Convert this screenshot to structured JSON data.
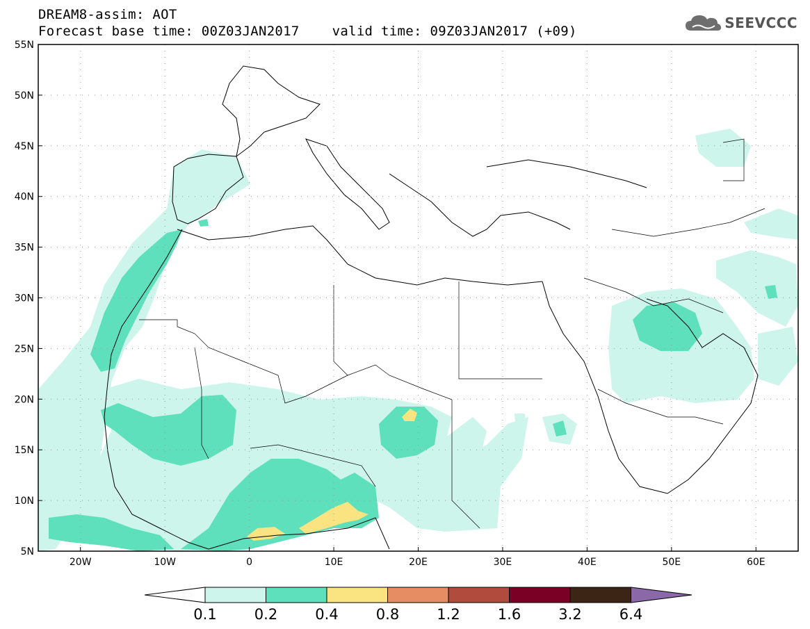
{
  "header": {
    "line1": "DREAM8-assim: AOT",
    "line2": "Forecast base time: 00Z03JAN2017    valid time: 09Z03JAN2017 (+09)"
  },
  "logo": {
    "text": "SEEVCCC",
    "icon": "cloud-icon"
  },
  "map": {
    "lon_range": [
      -25,
      65
    ],
    "lat_range": [
      5,
      55
    ],
    "lat_labels": [
      "55N",
      "50N",
      "45N",
      "40N",
      "35N",
      "30N",
      "25N",
      "20N",
      "15N",
      "10N",
      "5N"
    ],
    "lon_labels": [
      "20W",
      "10W",
      "0",
      "10E",
      "20E",
      "30E",
      "40E",
      "50E",
      "60E"
    ],
    "grid": "dotted"
  },
  "colorbar": {
    "labels": [
      "0.1",
      "0.2",
      "0.4",
      "0.8",
      "1.2",
      "1.6",
      "3.2",
      "6.4"
    ],
    "colors": [
      "#ffffff",
      "#cdf5ec",
      "#5fe0bd",
      "#fae481",
      "#e68d63",
      "#b04b3d",
      "#7a0026",
      "#3c2514",
      "#8b68a8"
    ]
  }
}
